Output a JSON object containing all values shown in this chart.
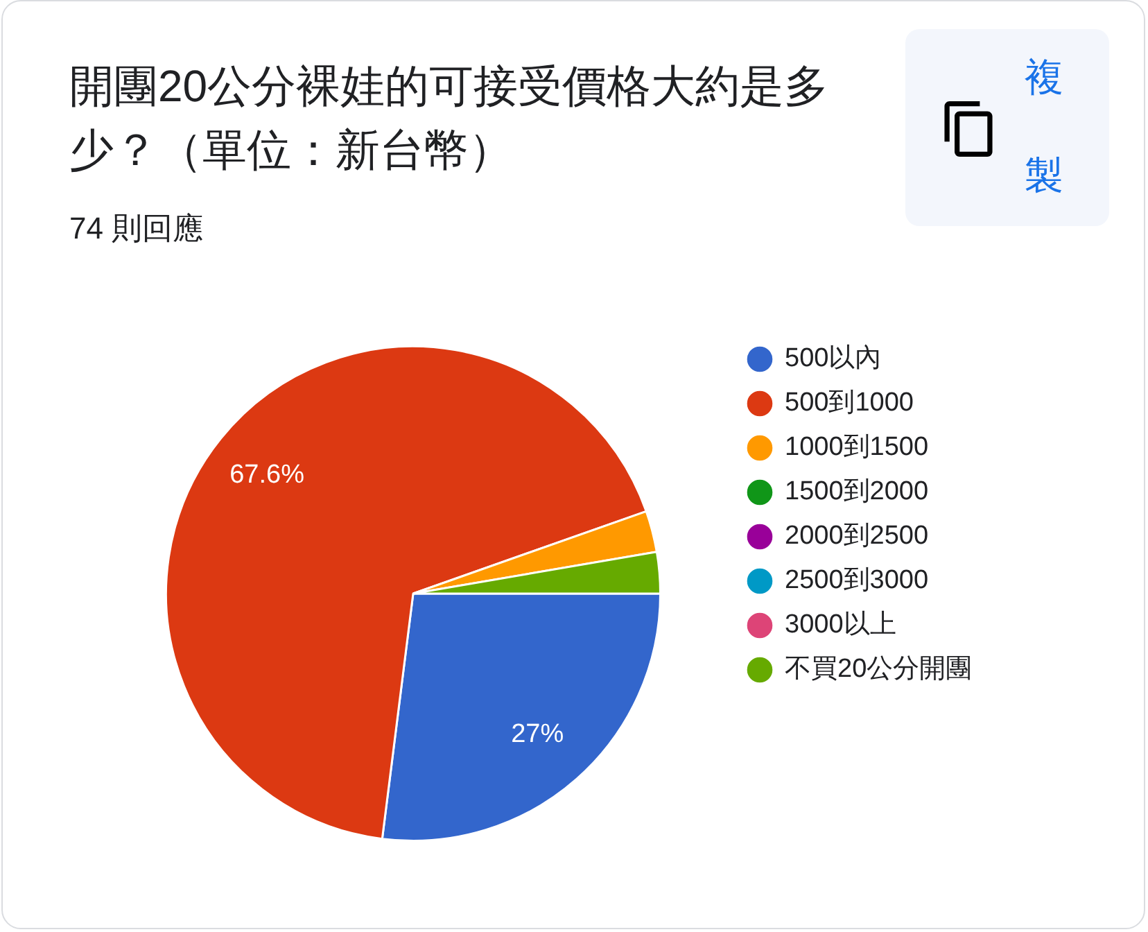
{
  "chart_data": {
    "type": "pie",
    "title": "開團20公分裸娃的可接受價格大約是多少？（單位：新台幣）",
    "subtitle": "74 則回應",
    "categories": [
      "500以內",
      "500到1000",
      "1000到1500",
      "1500到2000",
      "2000到2500",
      "2500到3000",
      "3000以上",
      "不買20公分開團"
    ],
    "values": [
      27,
      67.6,
      2.7,
      0,
      0,
      0,
      0,
      2.7
    ],
    "colors": [
      "#3366cc",
      "#dc3912",
      "#ff9900",
      "#109618",
      "#990099",
      "#0099c6",
      "#dd4477",
      "#66aa00"
    ],
    "value_labels": [
      "27%",
      "67.6%",
      null,
      null,
      null,
      null,
      null,
      null
    ],
    "legend": "right",
    "annotations": [
      "複製"
    ]
  }
}
